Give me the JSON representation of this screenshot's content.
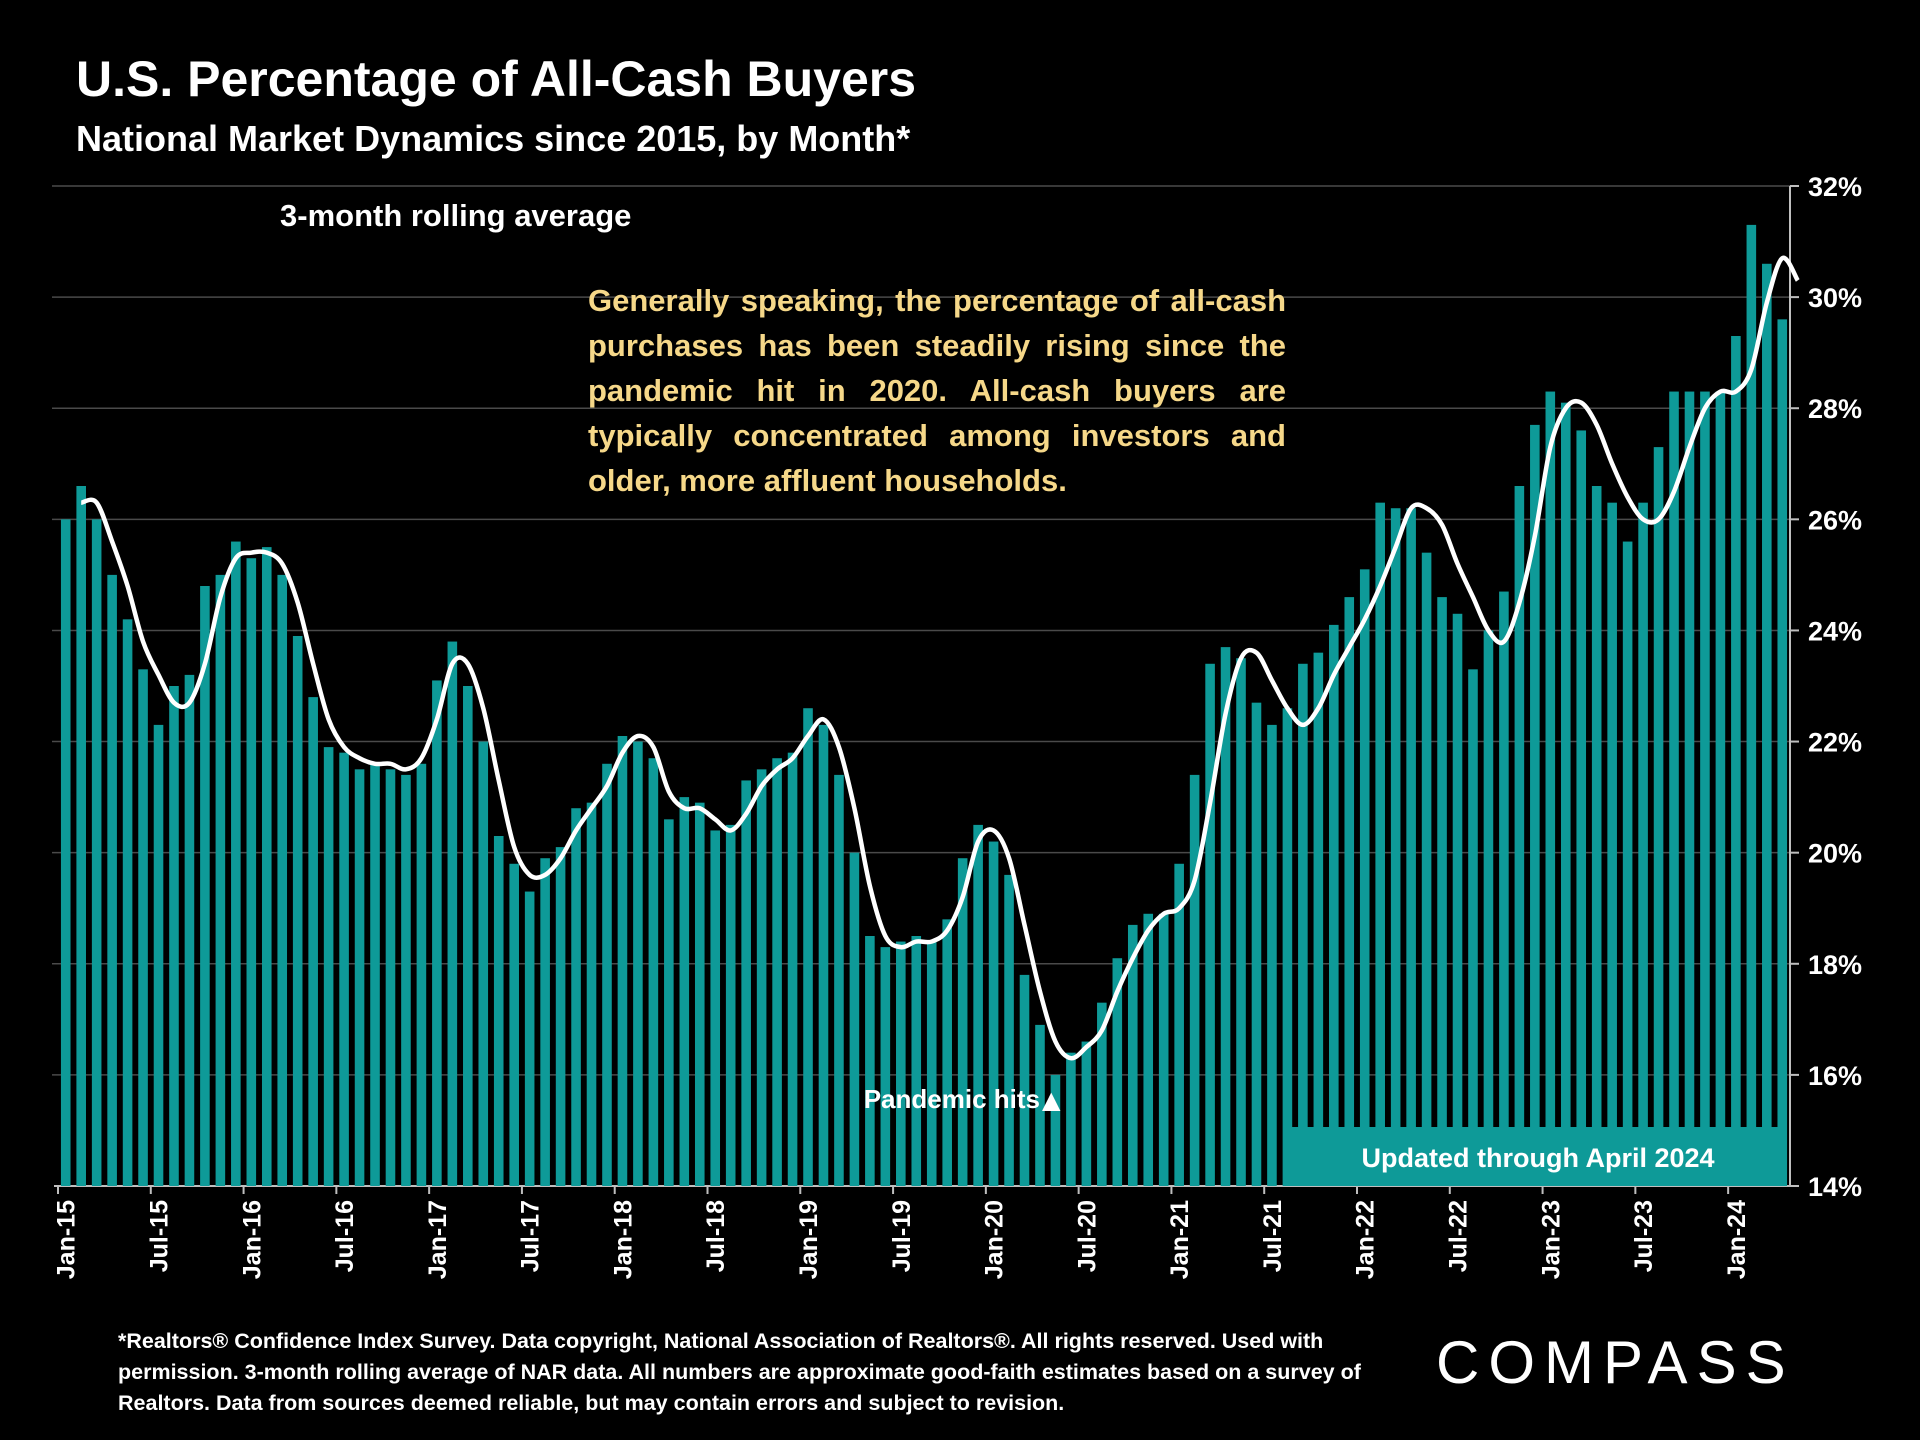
{
  "header": {
    "title": "U.S. Percentage of All-Cash Buyers",
    "subtitle": "National Market Dynamics since 2015, by Month*"
  },
  "legend_note": "3-month rolling average",
  "annotation": "Generally speaking, the percentage of all-cash purchases has been steadily rising since the pandemic hit in 2020. All-cash buyers are typically concentrated among investors and older, more affluent households.",
  "pandemic_label": "Pandemic hits",
  "pandemic_marker_glyph": "▲",
  "updated_badge": "Updated through April 2024",
  "footnote": "*Realtors® Confidence Index Survey. Data copyright, National Association of Realtors®. All rights reserved. Used with permission. 3-month rolling average of NAR data. All numbers are approximate good-faith estimates based on a survey of Realtors. Data from sources deemed reliable, but may contain errors and subject to revision.",
  "logo": "COMPASS",
  "colors": {
    "background": "#000000",
    "bar": "#0e9a98",
    "line": "#ffffff",
    "annotation_text": "#f6d889",
    "badge": "#0e9a98",
    "grid": "#4a4a4a"
  },
  "chart_data": {
    "type": "bar",
    "title": "U.S. Percentage of All-Cash Buyers",
    "ylabel": "",
    "xlabel": "",
    "ylim": [
      14,
      32
    ],
    "y_ticks": [
      14,
      16,
      18,
      20,
      22,
      24,
      26,
      28,
      30,
      32
    ],
    "y_tick_format": "%",
    "grid": true,
    "x_tick_labels": [
      "Jan-15",
      "Jul-15",
      "Jan-16",
      "Jul-16",
      "Jan-17",
      "Jul-17",
      "Jan-18",
      "Jul-18",
      "Jan-19",
      "Jul-19",
      "Jan-20",
      "Jul-20",
      "Jan-21",
      "Jul-21",
      "Jan-22",
      "Jul-22",
      "Jan-23",
      "Jul-23",
      "Jan-24"
    ],
    "x_tick_month_index": [
      0,
      6,
      12,
      18,
      24,
      30,
      36,
      42,
      48,
      54,
      60,
      66,
      72,
      78,
      84,
      90,
      96,
      102,
      108
    ],
    "start_month": "Jan-15",
    "end_month": "Apr-24",
    "series": [
      {
        "name": "Monthly all-cash share",
        "type": "bar",
        "values": [
          26.0,
          26.6,
          26.0,
          25.0,
          24.2,
          23.3,
          22.3,
          23.0,
          23.2,
          24.8,
          25.0,
          25.6,
          25.3,
          25.5,
          25.0,
          23.9,
          22.8,
          21.9,
          21.8,
          21.5,
          21.6,
          21.5,
          21.4,
          21.6,
          23.1,
          23.8,
          23.0,
          22.0,
          20.3,
          19.8,
          19.3,
          19.9,
          20.1,
          20.8,
          20.9,
          21.6,
          22.1,
          22.0,
          21.7,
          20.6,
          21.0,
          20.9,
          20.4,
          20.5,
          21.3,
          21.5,
          21.7,
          21.8,
          22.6,
          22.3,
          21.4,
          20.0,
          18.5,
          18.3,
          18.4,
          18.5,
          18.4,
          18.8,
          19.9,
          20.5,
          20.2,
          19.6,
          17.8,
          16.9,
          16.0,
          16.4,
          16.6,
          17.3,
          18.1,
          18.7,
          18.9,
          18.9,
          19.8,
          21.4,
          23.4,
          23.7,
          23.5,
          22.7,
          22.3,
          22.6,
          23.4,
          23.6,
          24.1,
          24.6,
          25.1,
          26.3,
          26.2,
          26.2,
          25.4,
          24.6,
          24.3,
          23.3,
          24.0,
          24.7,
          26.6,
          27.7,
          28.3,
          28.1,
          27.6,
          26.6,
          26.3,
          25.6,
          26.3,
          27.3,
          28.3,
          28.3,
          28.3,
          28.3,
          29.3,
          31.3,
          30.6,
          29.6
        ]
      },
      {
        "name": "3-month rolling average",
        "type": "line",
        "values": [
          null,
          26.3,
          26.3,
          25.6,
          24.8,
          23.8,
          23.2,
          22.7,
          22.7,
          23.4,
          24.6,
          25.3,
          25.4,
          25.4,
          25.2,
          24.5,
          23.4,
          22.4,
          21.9,
          21.7,
          21.6,
          21.6,
          21.5,
          21.7,
          22.4,
          23.4,
          23.4,
          22.6,
          21.3,
          20.1,
          19.6,
          19.6,
          19.9,
          20.4,
          20.8,
          21.2,
          21.8,
          22.1,
          21.9,
          21.1,
          20.8,
          20.8,
          20.6,
          20.4,
          20.7,
          21.2,
          21.5,
          21.7,
          22.1,
          22.4,
          21.9,
          20.8,
          19.4,
          18.5,
          18.3,
          18.4,
          18.4,
          18.6,
          19.2,
          20.2,
          20.4,
          19.9,
          18.7,
          17.5,
          16.6,
          16.3,
          16.5,
          16.8,
          17.5,
          18.1,
          18.6,
          18.9,
          19.0,
          19.5,
          20.9,
          22.5,
          23.5,
          23.6,
          23.1,
          22.6,
          22.3,
          22.6,
          23.2,
          23.7,
          24.2,
          24.8,
          25.5,
          26.2,
          26.2,
          25.9,
          25.2,
          24.6,
          24.0,
          23.8,
          24.5,
          25.7,
          27.3,
          28.0,
          28.1,
          27.7,
          27.0,
          26.4,
          26.0,
          26.0,
          26.5,
          27.3,
          28.0,
          28.3,
          28.3,
          28.7,
          29.9,
          30.7,
          30.3
        ]
      }
    ],
    "annotations": [
      "3-month rolling average",
      "Pandemic hits",
      "Updated through April 2024"
    ]
  }
}
